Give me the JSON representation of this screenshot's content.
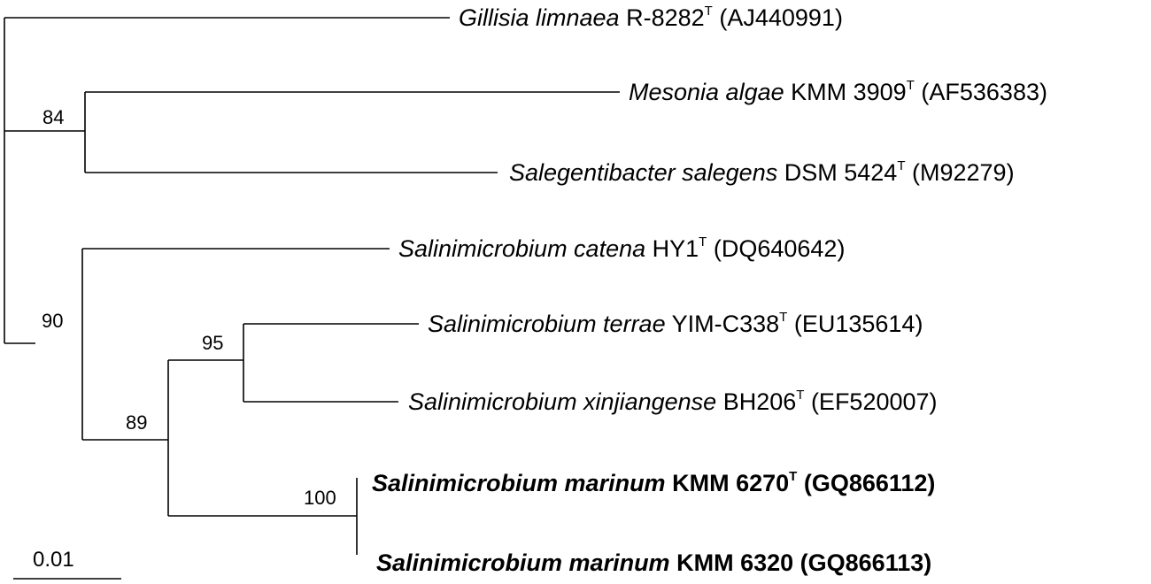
{
  "tree": {
    "taxa": [
      {
        "genus_species": "Gillisia limnaea",
        "strain": "R-8282",
        "type_strain_mark": "T",
        "accession": "(AJ440991)"
      },
      {
        "genus_species": "Mesonia algae",
        "strain": "KMM 3909",
        "type_strain_mark": "T",
        "accession": "(AF536383)"
      },
      {
        "genus_species": "Salegentibacter salegens",
        "strain": "DSM 5424",
        "type_strain_mark": "T",
        "accession": "(M92279)"
      },
      {
        "genus_species": "Salinimicrobium catena",
        "strain": "HY1",
        "type_strain_mark": "T",
        "accession": "(DQ640642)"
      },
      {
        "genus_species": "Salinimicrobium terrae",
        "strain": "YIM-C338",
        "type_strain_mark": "T",
        "accession": "(EU135614)"
      },
      {
        "genus_species": "Salinimicrobium xinjiangense",
        "strain": "BH206",
        "type_strain_mark": "T",
        "accession": "(EF520007)"
      },
      {
        "genus_species": "Salinimicrobium marinum",
        "strain": "KMM 6270",
        "type_strain_mark": "T",
        "accession": "(GQ866112)"
      },
      {
        "genus_species": "Salinimicrobium marinum",
        "strain": "KMM 6320",
        "type_strain_mark": "",
        "accession": "(GQ866113)"
      }
    ],
    "bootstrap": {
      "mesonia_salegentibacter": "84",
      "salinimicrobium_clade": "90",
      "terrae_xinjiangense": "95",
      "inner_clade": "89",
      "marinum_pair": "100"
    },
    "scale_bar_label": "0.01"
  }
}
